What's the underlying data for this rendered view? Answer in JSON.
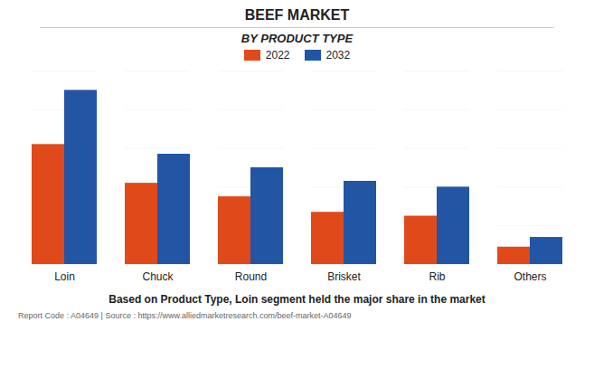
{
  "chart_data": {
    "type": "bar",
    "title": "BEEF MARKET",
    "subtitle": "BY PRODUCT TYPE",
    "categories": [
      "Loin",
      "Chuck",
      "Round",
      "Brisket",
      "Rib",
      "Others"
    ],
    "series": [
      {
        "name": "2022",
        "color": "#e04a1a",
        "values": [
          62,
          42,
          35,
          27,
          25,
          9
        ]
      },
      {
        "name": "2032",
        "color": "#2255a4",
        "values": [
          90,
          57,
          50,
          43,
          40,
          14
        ]
      }
    ],
    "ylim": [
      0,
      100
    ],
    "yticks": [
      0,
      20,
      40,
      60,
      80,
      100
    ],
    "grid": true,
    "tick_labels": "x",
    "legend": "top",
    "annotations": [
      "Based on Product Type, Loin segment held the major share in the market",
      "Report Code : A04649  |  Source : https://www.alliedmarketresearch.com/beef-market-A04649"
    ]
  }
}
